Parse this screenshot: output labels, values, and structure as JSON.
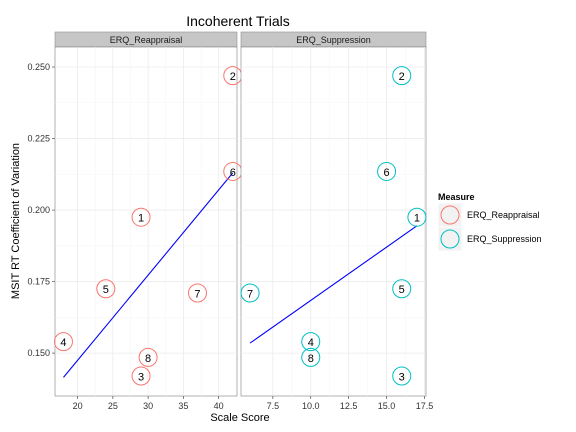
{
  "chart_data": {
    "type": "scatter",
    "title": "Incoherent Trials",
    "xlabel": "Scale Score",
    "ylabel": "MSIT RT Coefficient of Variation",
    "ylim": [
      0.135,
      0.257
    ],
    "y_ticks": [
      0.15,
      0.175,
      0.2,
      0.225,
      0.25
    ],
    "y_tick_labels": [
      "0.150",
      "0.175",
      "0.200",
      "0.225",
      "0.250"
    ],
    "grid": true,
    "legend": {
      "title": "Measure",
      "placement": "right",
      "entries": [
        {
          "name": "ERQ_Reappraisal",
          "color": "#F8766D"
        },
        {
          "name": "ERQ_Suppression",
          "color": "#00BFC4"
        }
      ]
    },
    "panels": [
      {
        "name": "ERQ_Reappraisal",
        "color": "#F8766D",
        "xlim": [
          16.8,
          42.6
        ],
        "x_ticks": [
          20,
          25,
          30,
          35,
          40
        ],
        "x_tick_labels": [
          "20",
          "25",
          "30",
          "35",
          "40"
        ],
        "points": [
          {
            "label": "1",
            "x": 29,
            "y": 0.1975
          },
          {
            "label": "2",
            "x": 42,
            "y": 0.247
          },
          {
            "label": "3",
            "x": 29,
            "y": 0.142
          },
          {
            "label": "4",
            "x": 18,
            "y": 0.154
          },
          {
            "label": "5",
            "x": 24,
            "y": 0.1725
          },
          {
            "label": "6",
            "x": 42,
            "y": 0.2135
          },
          {
            "label": "7",
            "x": 37,
            "y": 0.171
          },
          {
            "label": "8",
            "x": 30,
            "y": 0.1485
          }
        ],
        "fit_line": {
          "x": [
            18,
            42
          ],
          "y": [
            0.1415,
            0.213
          ],
          "color": "#0000FF"
        }
      },
      {
        "name": "ERQ_Suppression",
        "color": "#00BFC4",
        "xlim": [
          5.4,
          17.6
        ],
        "x_ticks": [
          7.5,
          10.0,
          12.5,
          15.0,
          17.5
        ],
        "x_tick_labels": [
          "7.5",
          "10.0",
          "12.5",
          "15.0",
          "17.5"
        ],
        "points": [
          {
            "label": "1",
            "x": 17,
            "y": 0.1975
          },
          {
            "label": "2",
            "x": 16,
            "y": 0.247
          },
          {
            "label": "3",
            "x": 16,
            "y": 0.142
          },
          {
            "label": "4",
            "x": 10,
            "y": 0.154
          },
          {
            "label": "5",
            "x": 16,
            "y": 0.1725
          },
          {
            "label": "6",
            "x": 15,
            "y": 0.2135
          },
          {
            "label": "7",
            "x": 6,
            "y": 0.171
          },
          {
            "label": "8",
            "x": 10,
            "y": 0.1485
          }
        ],
        "fit_line": {
          "x": [
            6,
            17
          ],
          "y": [
            0.1535,
            0.1945
          ],
          "color": "#0000FF"
        }
      }
    ]
  }
}
